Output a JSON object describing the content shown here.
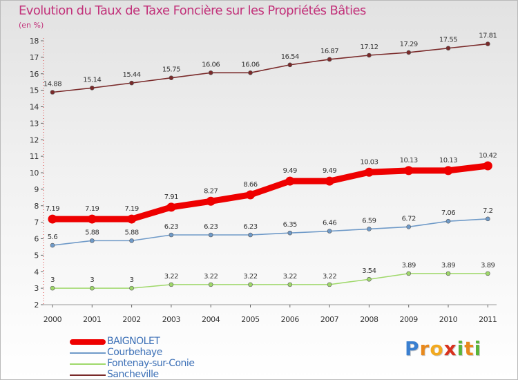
{
  "chart_data": {
    "type": "line",
    "title": "Evolution du Taux de Taxe Foncière sur les Propriétés Bâties",
    "unit_label": "(en %)",
    "ylim": [
      2,
      18
    ],
    "y_ticks": [
      "2",
      "3",
      "4",
      "5",
      "6",
      "7",
      "8",
      "9",
      "10",
      "11",
      "12",
      "13",
      "14",
      "15",
      "16",
      "17",
      "18"
    ],
    "categories": [
      "2000",
      "2001",
      "2002",
      "2003",
      "2004",
      "2005",
      "2006",
      "2007",
      "2008",
      "2009",
      "2010",
      "2011"
    ],
    "grid": false,
    "legend_position": "bottom-left",
    "series": [
      {
        "name": "Sancheville",
        "color": "#7a2a2a",
        "values": [
          14.88,
          15.14,
          15.44,
          15.75,
          16.06,
          16.06,
          16.54,
          16.87,
          17.12,
          17.29,
          17.55,
          17.81
        ],
        "labels": [
          "14.88",
          "15.14",
          "15.44",
          "15.75",
          "16.06",
          "16.06",
          "16.54",
          "16.87",
          "17.12",
          "17.29",
          "17.55",
          "17.81"
        ]
      },
      {
        "name": "BAIGNOLET",
        "color": "#ee0000",
        "values": [
          7.19,
          7.19,
          7.19,
          7.91,
          8.27,
          8.66,
          9.49,
          9.49,
          10.03,
          10.13,
          10.13,
          10.42
        ],
        "labels": [
          "7.19",
          "7.19",
          "7.19",
          "7.91",
          "8.27",
          "8.66",
          "9.49",
          "9.49",
          "10.03",
          "10.13",
          "10.13",
          "10.42"
        ]
      },
      {
        "name": "Courbehaye",
        "color": "#6f9ac8",
        "values": [
          5.6,
          5.88,
          5.88,
          6.23,
          6.23,
          6.23,
          6.35,
          6.46,
          6.59,
          6.72,
          7.06,
          7.2
        ],
        "labels": [
          "5.6",
          "5.88",
          "5.88",
          "6.23",
          "6.23",
          "6.23",
          "6.35",
          "6.46",
          "6.59",
          "6.72",
          "7.06",
          "7.2"
        ]
      },
      {
        "name": "Fontenay-sur-Conie",
        "color": "#9fd86a",
        "values": [
          3,
          3,
          3,
          3.22,
          3.22,
          3.22,
          3.22,
          3.22,
          3.54,
          3.89,
          3.89,
          3.89
        ],
        "labels": [
          "3",
          "3",
          "3",
          "3.22",
          "3.22",
          "3.22",
          "3.22",
          "3.22",
          "3.54",
          "3.89",
          "3.89",
          "3.89"
        ]
      }
    ],
    "legend": [
      {
        "name": "BAIGNOLET",
        "color": "#ee0000"
      },
      {
        "name": "Courbehaye",
        "color": "#6f9ac8"
      },
      {
        "name": "Fontenay-sur-Conie",
        "color": "#9fd86a"
      },
      {
        "name": "Sancheville",
        "color": "#7a2a2a"
      }
    ]
  },
  "logo": {
    "letters": [
      "P",
      "r",
      "o",
      "x",
      "i",
      "t",
      "i"
    ],
    "colors": [
      "#3a7fd0",
      "#e8891c",
      "#f2a91f",
      "#d8321e",
      "#58b53a",
      "#e8891c",
      "#58b53a"
    ]
  }
}
